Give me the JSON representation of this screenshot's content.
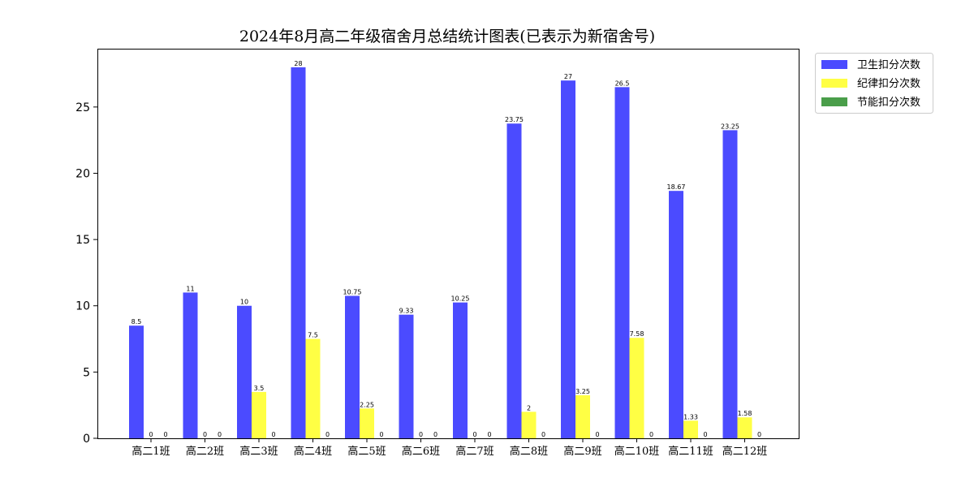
{
  "chart_data": {
    "type": "bar",
    "title": "2024年8月高二年级宿舍月总结统计图表(已表示为新宿舍号)",
    "xlabel": "",
    "ylabel": "",
    "categories": [
      "高二1班",
      "高二2班",
      "高二3班",
      "高二4班",
      "高二5班",
      "高二6班",
      "高二7班",
      "高二8班",
      "高二9班",
      "高二10班",
      "高二11班",
      "高二12班"
    ],
    "series": [
      {
        "name": "卫生扣分次数",
        "color": "#4b4bff",
        "values": [
          8.5,
          11,
          10,
          28,
          10.75,
          9.33,
          10.25,
          23.75,
          27,
          26.5,
          18.67,
          23.25
        ]
      },
      {
        "name": "纪律扣分次数",
        "color": "#ffff44",
        "values": [
          0,
          0,
          3.5,
          7.5,
          2.25,
          0,
          0,
          2,
          3.25,
          7.58,
          1.33,
          1.58
        ]
      },
      {
        "name": "节能扣分次数",
        "color": "#4a9e4a",
        "values": [
          0,
          0,
          0,
          0,
          0,
          0,
          0,
          0,
          0,
          0,
          0,
          0
        ]
      }
    ],
    "ylim": [
      0,
      29.4
    ],
    "yticks": [
      0,
      5,
      10,
      15,
      20,
      25
    ],
    "grid": false,
    "legend_position": "outside-top-right"
  }
}
